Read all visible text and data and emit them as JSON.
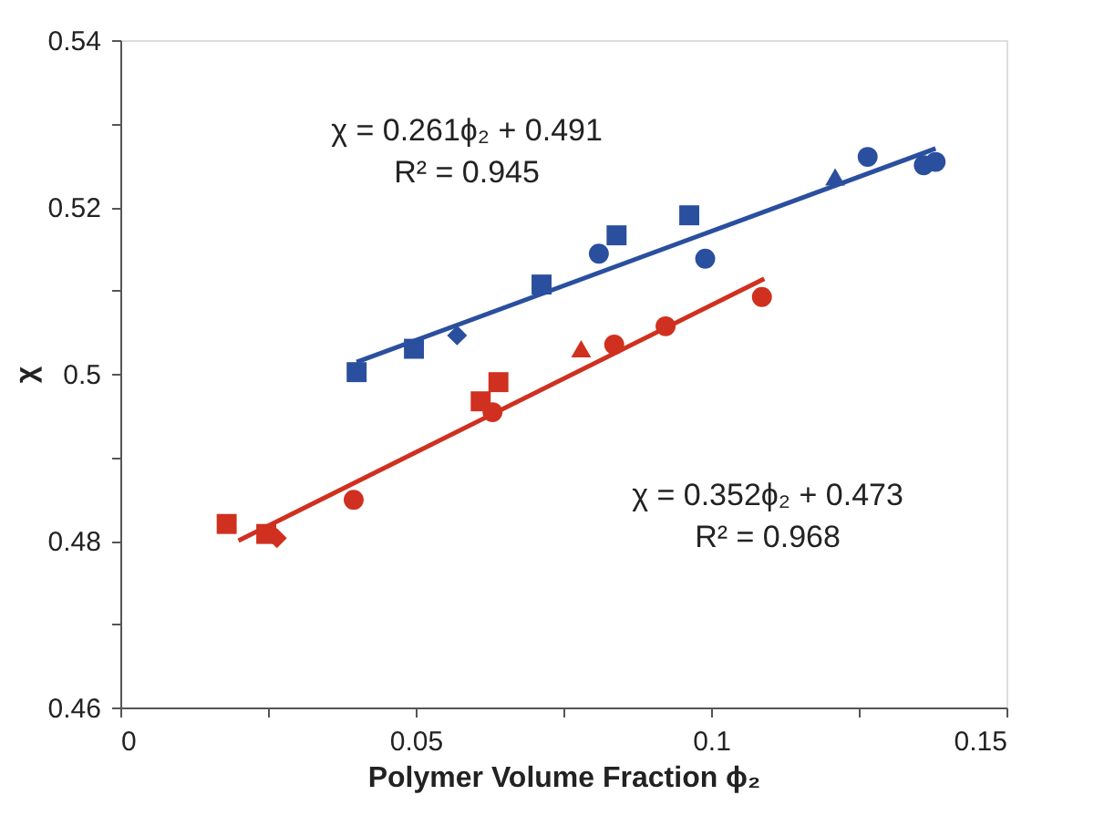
{
  "chart_data": {
    "type": "scatter",
    "xlabel": "Polymer Volume Fraction ϕ₂",
    "ylabel": "χ",
    "xlim": [
      0,
      0.15
    ],
    "ylim": [
      0.46,
      0.54
    ],
    "xticks": [
      0,
      {
        "value": 0.025,
        "label": null
      },
      0.05,
      {
        "value": 0.075,
        "label": null
      },
      0.1,
      {
        "value": 0.125,
        "label": null
      },
      0.15
    ],
    "yticks": [
      0.46,
      {
        "value": 0.47,
        "label": null
      },
      0.48,
      {
        "value": 0.49,
        "label": null
      },
      0.5,
      {
        "value": 0.51,
        "label": null
      },
      0.52,
      {
        "value": 0.53,
        "label": null
      },
      0.54
    ],
    "grid": false,
    "line_style": "solid",
    "series": [
      {
        "marker": "square",
        "color": "#2a4f9e",
        "x": [
          0.04,
          0.0497,
          0.0713,
          0.084,
          0.0963
        ],
        "values": [
          0.5002,
          0.503,
          0.5107,
          0.5166,
          0.519
        ]
      },
      {
        "marker": "diamond",
        "color": "#2a4f9e",
        "x": [
          0.057
        ],
        "values": [
          0.5046
        ]
      },
      {
        "marker": "circle",
        "color": "#2a4f9e",
        "x": [
          0.081,
          0.099,
          0.1265,
          0.136,
          0.138
        ],
        "values": [
          0.5144,
          0.5138,
          0.526,
          0.525,
          0.5254
        ]
      },
      {
        "marker": "triangle",
        "color": "#2a4f9e",
        "x": [
          0.121
        ],
        "values": [
          0.5236
        ]
      },
      {
        "type": "line",
        "marker": "none",
        "color": "#2a4f9e",
        "x": [
          0.04,
          0.138
        ],
        "values": [
          0.5014,
          0.527
        ]
      },
      {
        "marker": "square",
        "color": "#d0301f",
        "x": [
          0.018,
          0.0247,
          0.061,
          0.064
        ],
        "values": [
          0.482,
          0.4808,
          0.4967,
          0.499
        ]
      },
      {
        "marker": "diamond",
        "color": "#d0301f",
        "x": [
          0.0265
        ],
        "values": [
          0.4803
        ]
      },
      {
        "marker": "circle",
        "color": "#d0301f",
        "x": [
          0.0395,
          0.063,
          0.0836,
          0.0923,
          0.1086
        ],
        "values": [
          0.4849,
          0.4954,
          0.5035,
          0.5057,
          0.5092
        ]
      },
      {
        "marker": "triangle",
        "color": "#d0301f",
        "x": [
          0.078
        ],
        "values": [
          0.503
        ]
      },
      {
        "type": "line",
        "marker": "none",
        "color": "#d0301f",
        "x": [
          0.02,
          0.109
        ],
        "values": [
          0.48,
          0.5114
        ]
      }
    ],
    "annotations": [
      "χ = 0.261ϕ₂ + 0.491",
      "R² = 0.945",
      "χ = 0.352ϕ₂ + 0.473",
      "R² = 0.968"
    ]
  }
}
